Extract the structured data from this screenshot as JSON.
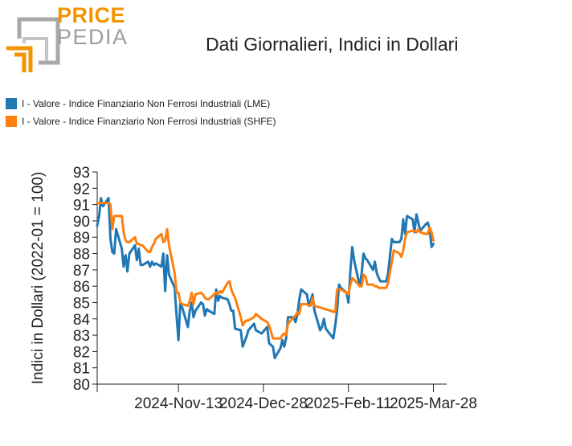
{
  "logo": {
    "top": "PRICE",
    "bottom": "PEDIA",
    "top_color": "#F29400",
    "bottom_color": "#9E9E9E"
  },
  "title": "Dati Giornalieri, Indici in Dollari",
  "legend": [
    {
      "label": "I - Valore - Indice Finanziario Non Ferrosi Industriali (LME)",
      "color": "#1F77B4"
    },
    {
      "label": "I - Valore - Indice Finanziario Non Ferrosi Industriali (SHFE)",
      "color": "#FF7F0E"
    }
  ],
  "chart_data": {
    "type": "line",
    "title": "Dati Giornalieri, Indici in Dollari",
    "xlabel": "",
    "ylabel": "Indici in Dollari (2022-01 = 100)",
    "x_range": [
      "2024-10-01",
      "2025-04-04"
    ],
    "x_ticks": [
      "2024-11-13",
      "2024-12-28",
      "2025-02-11",
      "2025-03-28"
    ],
    "x_tick_labels": [
      "2024-Nov-13",
      "2024-Dec-28",
      "2025-Feb-11",
      "2025-Mar-28"
    ],
    "ylim": [
      80,
      93
    ],
    "y_ticks": [
      80,
      81,
      82,
      83,
      84,
      85,
      86,
      87,
      88,
      89,
      90,
      91,
      92,
      93
    ],
    "grid": false,
    "legend_position": "top-left",
    "series": [
      {
        "name": "I - Valore - Indice Finanziario Non Ferrosi Industriali (LME)",
        "color": "#1F77B4",
        "points": [
          [
            "2024-10-01",
            89.7
          ],
          [
            "2024-10-02",
            90.3
          ],
          [
            "2024-10-03",
            91.4
          ],
          [
            "2024-10-04",
            90.9
          ],
          [
            "2024-10-07",
            91.4
          ],
          [
            "2024-10-08",
            88.9
          ],
          [
            "2024-10-09",
            88.1
          ],
          [
            "2024-10-10",
            88.0
          ],
          [
            "2024-10-11",
            89.5
          ],
          [
            "2024-10-14",
            88.3
          ],
          [
            "2024-10-15",
            87.2
          ],
          [
            "2024-10-16",
            87.9
          ],
          [
            "2024-10-17",
            86.9
          ],
          [
            "2024-10-18",
            88.0
          ],
          [
            "2024-10-21",
            88.5
          ],
          [
            "2024-10-22",
            87.6
          ],
          [
            "2024-10-23",
            88.3
          ],
          [
            "2024-10-24",
            87.3
          ],
          [
            "2024-10-25",
            87.3
          ],
          [
            "2024-10-28",
            87.5
          ],
          [
            "2024-10-29",
            87.2
          ],
          [
            "2024-10-30",
            87.5
          ],
          [
            "2024-10-31",
            87.3
          ],
          [
            "2024-11-01",
            87.4
          ],
          [
            "2024-11-04",
            87.2
          ],
          [
            "2024-11-05",
            88.0
          ],
          [
            "2024-11-06",
            85.7
          ],
          [
            "2024-11-07",
            87.9
          ],
          [
            "2024-11-08",
            86.7
          ],
          [
            "2024-11-11",
            85.9
          ],
          [
            "2024-11-12",
            84.2
          ],
          [
            "2024-11-13",
            82.7
          ],
          [
            "2024-11-14",
            85.0
          ],
          [
            "2024-11-15",
            84.7
          ],
          [
            "2024-11-18",
            83.5
          ],
          [
            "2024-11-19",
            84.5
          ],
          [
            "2024-11-20",
            85.0
          ],
          [
            "2024-11-21",
            84.1
          ],
          [
            "2024-11-22",
            84.5
          ],
          [
            "2024-11-25",
            85.0
          ],
          [
            "2024-11-26",
            84.9
          ],
          [
            "2024-11-27",
            84.2
          ],
          [
            "2024-11-28",
            84.6
          ],
          [
            "2024-11-29",
            84.5
          ],
          [
            "2024-12-02",
            84.3
          ],
          [
            "2024-12-03",
            85.8
          ],
          [
            "2024-12-04",
            85.1
          ],
          [
            "2024-12-05",
            85.4
          ],
          [
            "2024-12-06",
            85.3
          ],
          [
            "2024-12-09",
            85.2
          ],
          [
            "2024-12-10",
            84.9
          ],
          [
            "2024-12-11",
            84.5
          ],
          [
            "2024-12-12",
            84.5
          ],
          [
            "2024-12-13",
            83.4
          ],
          [
            "2024-12-16",
            83.3
          ],
          [
            "2024-12-17",
            82.3
          ],
          [
            "2024-12-18",
            82.6
          ],
          [
            "2024-12-19",
            82.9
          ],
          [
            "2024-12-20",
            83.3
          ],
          [
            "2024-12-23",
            83.7
          ],
          [
            "2024-12-24",
            83.3
          ],
          [
            "2024-12-27",
            83.1
          ],
          [
            "2024-12-30",
            83.5
          ],
          [
            "2024-12-31",
            82.5
          ],
          [
            "2025-01-02",
            82.3
          ],
          [
            "2025-01-03",
            81.6
          ],
          [
            "2025-01-06",
            82.2
          ],
          [
            "2025-01-07",
            82.7
          ],
          [
            "2025-01-08",
            82.3
          ],
          [
            "2025-01-09",
            82.8
          ],
          [
            "2025-01-10",
            84.1
          ],
          [
            "2025-01-13",
            84.1
          ],
          [
            "2025-01-14",
            83.8
          ],
          [
            "2025-01-15",
            84.3
          ],
          [
            "2025-01-16",
            85.2
          ],
          [
            "2025-01-17",
            85.8
          ],
          [
            "2025-01-20",
            85.5
          ],
          [
            "2025-01-21",
            84.8
          ],
          [
            "2025-01-22",
            85.1
          ],
          [
            "2025-01-23",
            85.5
          ],
          [
            "2025-01-24",
            84.5
          ],
          [
            "2025-01-27",
            83.3
          ],
          [
            "2025-01-28",
            83.5
          ],
          [
            "2025-01-29",
            84.0
          ],
          [
            "2025-01-30",
            83.4
          ],
          [
            "2025-02-03",
            82.8
          ],
          [
            "2025-02-04",
            83.6
          ],
          [
            "2025-02-05",
            84.5
          ],
          [
            "2025-02-06",
            86.1
          ],
          [
            "2025-02-07",
            85.9
          ],
          [
            "2025-02-10",
            85.6
          ],
          [
            "2025-02-11",
            85.0
          ],
          [
            "2025-02-12",
            86.9
          ],
          [
            "2025-02-13",
            88.4
          ],
          [
            "2025-02-14",
            87.6
          ],
          [
            "2025-02-17",
            86.0
          ],
          [
            "2025-02-18",
            86.8
          ],
          [
            "2025-02-19",
            88.0
          ],
          [
            "2025-02-20",
            87.7
          ],
          [
            "2025-02-21",
            87.6
          ],
          [
            "2025-02-24",
            87.0
          ],
          [
            "2025-02-25",
            87.5
          ],
          [
            "2025-02-26",
            86.8
          ],
          [
            "2025-02-27",
            86.5
          ],
          [
            "2025-02-28",
            86.3
          ],
          [
            "2025-03-03",
            86.3
          ],
          [
            "2025-03-04",
            86.8
          ],
          [
            "2025-03-05",
            87.9
          ],
          [
            "2025-03-06",
            88.9
          ],
          [
            "2025-03-07",
            88.7
          ],
          [
            "2025-03-10",
            88.7
          ],
          [
            "2025-03-11",
            88.9
          ],
          [
            "2025-03-12",
            90.1
          ],
          [
            "2025-03-13",
            89.2
          ],
          [
            "2025-03-14",
            90.3
          ],
          [
            "2025-03-17",
            90.1
          ],
          [
            "2025-03-18",
            89.3
          ],
          [
            "2025-03-19",
            90.4
          ],
          [
            "2025-03-20",
            89.9
          ],
          [
            "2025-03-21",
            89.4
          ],
          [
            "2025-03-24",
            89.8
          ],
          [
            "2025-03-25",
            89.9
          ],
          [
            "2025-03-26",
            89.5
          ],
          [
            "2025-03-27",
            88.4
          ],
          [
            "2025-03-28",
            88.6
          ]
        ]
      },
      {
        "name": "I - Valore - Indice Finanziario Non Ferrosi Industriali (SHFE)",
        "color": "#FF7F0E",
        "points": [
          [
            "2024-10-01",
            91.1
          ],
          [
            "2024-10-07",
            91.1
          ],
          [
            "2024-10-08",
            91.0
          ],
          [
            "2024-10-09",
            89.5
          ],
          [
            "2024-10-10",
            90.3
          ],
          [
            "2024-10-11",
            90.3
          ],
          [
            "2024-10-14",
            90.3
          ],
          [
            "2024-10-15",
            89.3
          ],
          [
            "2024-10-16",
            88.8
          ],
          [
            "2024-10-17",
            88.7
          ],
          [
            "2024-10-18",
            88.7
          ],
          [
            "2024-10-21",
            89.0
          ],
          [
            "2024-10-22",
            88.6
          ],
          [
            "2024-10-23",
            88.6
          ],
          [
            "2024-10-24",
            88.5
          ],
          [
            "2024-10-25",
            88.5
          ],
          [
            "2024-10-28",
            88.1
          ],
          [
            "2024-10-29",
            88.1
          ],
          [
            "2024-10-30",
            88.4
          ],
          [
            "2024-10-31",
            88.6
          ],
          [
            "2024-11-01",
            88.9
          ],
          [
            "2024-11-04",
            89.2
          ],
          [
            "2024-11-05",
            88.7
          ],
          [
            "2024-11-06",
            88.8
          ],
          [
            "2024-11-07",
            89.5
          ],
          [
            "2024-11-08",
            88.5
          ],
          [
            "2024-11-11",
            86.8
          ],
          [
            "2024-11-12",
            85.6
          ],
          [
            "2024-11-13",
            85.6
          ],
          [
            "2024-11-14",
            85.0
          ],
          [
            "2024-11-15",
            84.9
          ],
          [
            "2024-11-18",
            84.8
          ],
          [
            "2024-11-19",
            85.1
          ],
          [
            "2024-11-20",
            85.6
          ],
          [
            "2024-11-21",
            84.9
          ],
          [
            "2024-11-22",
            85.5
          ],
          [
            "2024-11-25",
            85.6
          ],
          [
            "2024-11-26",
            85.5
          ],
          [
            "2024-11-27",
            85.3
          ],
          [
            "2024-11-28",
            85.2
          ],
          [
            "2024-11-29",
            85.2
          ],
          [
            "2024-12-02",
            85.5
          ],
          [
            "2024-12-03",
            85.6
          ],
          [
            "2024-12-04",
            85.5
          ],
          [
            "2024-12-05",
            85.7
          ],
          [
            "2024-12-06",
            85.6
          ],
          [
            "2024-12-09",
            86.2
          ],
          [
            "2024-12-10",
            86.3
          ],
          [
            "2024-12-11",
            85.8
          ],
          [
            "2024-12-12",
            85.5
          ],
          [
            "2024-12-13",
            85.3
          ],
          [
            "2024-12-16",
            84.1
          ],
          [
            "2024-12-17",
            83.6
          ],
          [
            "2024-12-18",
            83.8
          ],
          [
            "2024-12-19",
            83.9
          ],
          [
            "2024-12-20",
            83.9
          ],
          [
            "2024-12-23",
            84.1
          ],
          [
            "2024-12-24",
            84.3
          ],
          [
            "2024-12-27",
            84.0
          ],
          [
            "2024-12-30",
            83.8
          ],
          [
            "2024-12-31",
            83.6
          ],
          [
            "2025-01-02",
            82.8
          ],
          [
            "2025-01-03",
            82.8
          ],
          [
            "2025-01-06",
            82.8
          ],
          [
            "2025-01-07",
            83.0
          ],
          [
            "2025-01-08",
            83.1
          ],
          [
            "2025-01-09",
            83.0
          ],
          [
            "2025-01-10",
            83.7
          ],
          [
            "2025-01-13",
            84.1
          ],
          [
            "2025-01-14",
            84.2
          ],
          [
            "2025-01-15",
            84.4
          ],
          [
            "2025-01-16",
            84.3
          ],
          [
            "2025-01-17",
            84.9
          ],
          [
            "2025-01-20",
            84.9
          ],
          [
            "2025-01-21",
            84.8
          ],
          [
            "2025-01-22",
            84.8
          ],
          [
            "2025-01-23",
            85.3
          ],
          [
            "2025-01-24",
            84.8
          ],
          [
            "2025-02-04",
            84.4
          ],
          [
            "2025-02-05",
            85.8
          ],
          [
            "2025-02-06",
            85.8
          ],
          [
            "2025-02-07",
            85.8
          ],
          [
            "2025-02-10",
            85.6
          ],
          [
            "2025-02-11",
            85.5
          ],
          [
            "2025-02-12",
            86.1
          ],
          [
            "2025-02-13",
            86.5
          ],
          [
            "2025-02-14",
            86.4
          ],
          [
            "2025-02-17",
            86.0
          ],
          [
            "2025-02-18",
            86.0
          ],
          [
            "2025-02-19",
            86.7
          ],
          [
            "2025-02-20",
            86.6
          ],
          [
            "2025-02-21",
            86.1
          ],
          [
            "2025-02-24",
            86.1
          ],
          [
            "2025-02-25",
            86.0
          ],
          [
            "2025-02-26",
            86.0
          ],
          [
            "2025-02-27",
            85.9
          ],
          [
            "2025-02-28",
            85.9
          ],
          [
            "2025-03-03",
            85.9
          ],
          [
            "2025-03-04",
            86.2
          ],
          [
            "2025-03-05",
            86.9
          ],
          [
            "2025-03-06",
            87.5
          ],
          [
            "2025-03-07",
            88.2
          ],
          [
            "2025-03-10",
            88.0
          ],
          [
            "2025-03-11",
            87.8
          ],
          [
            "2025-03-12",
            88.2
          ],
          [
            "2025-03-13",
            88.9
          ],
          [
            "2025-03-14",
            89.3
          ],
          [
            "2025-03-17",
            89.4
          ],
          [
            "2025-03-18",
            89.4
          ],
          [
            "2025-03-19",
            89.3
          ],
          [
            "2025-03-20",
            89.5
          ],
          [
            "2025-03-21",
            89.3
          ],
          [
            "2025-03-24",
            89.2
          ],
          [
            "2025-03-25",
            89.2
          ],
          [
            "2025-03-26",
            89.6
          ],
          [
            "2025-03-27",
            89.3
          ],
          [
            "2025-03-28",
            88.8
          ]
        ]
      }
    ]
  }
}
